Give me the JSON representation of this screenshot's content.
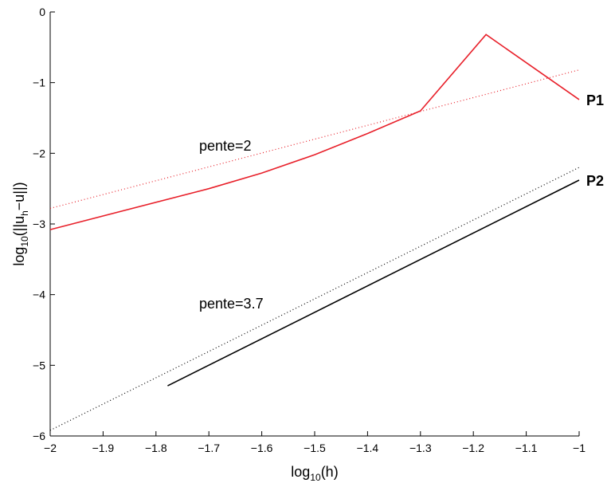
{
  "chart_data": {
    "type": "line",
    "xlabel": [
      "log",
      "10",
      "(h)"
    ],
    "ylabel": [
      "log",
      "10",
      "(||u",
      "h",
      "−u||)"
    ],
    "xlim": [
      -2,
      -1
    ],
    "ylim": [
      -6,
      0
    ],
    "xticks": [
      {
        "value": -2,
        "label": "−2"
      },
      {
        "value": -1.9,
        "label": "−1.9"
      },
      {
        "value": -1.8,
        "label": "−1.8"
      },
      {
        "value": -1.7,
        "label": "−1.7"
      },
      {
        "value": -1.6,
        "label": "−1.6"
      },
      {
        "value": -1.5,
        "label": "−1.5"
      },
      {
        "value": -1.4,
        "label": "−1.4"
      },
      {
        "value": -1.3,
        "label": "−1.3"
      },
      {
        "value": -1.2,
        "label": "−1.2"
      },
      {
        "value": -1.1,
        "label": "−1.1"
      },
      {
        "value": -1,
        "label": "−1"
      }
    ],
    "yticks": [
      {
        "value": -6,
        "label": "−6"
      },
      {
        "value": -5,
        "label": "−5"
      },
      {
        "value": -4,
        "label": "−4"
      },
      {
        "value": -3,
        "label": "−3"
      },
      {
        "value": -2,
        "label": "−2"
      },
      {
        "value": -1,
        "label": "−1"
      },
      0
    ],
    "series": [
      {
        "name": "P1",
        "color": "#e8202a",
        "linestyle": "solid",
        "x": [
          -2,
          -1.7,
          -1.6,
          -1.5,
          -1.4,
          -1.3,
          -1.176,
          -1
        ],
        "values": [
          -3.08,
          -2.5,
          -2.28,
          -2.02,
          -1.72,
          -1.4,
          -0.32,
          -1.24
        ]
      },
      {
        "name": "P2",
        "color": "#000000",
        "linestyle": "solid",
        "x": [
          -1.778,
          -1
        ],
        "values": [
          -5.29,
          -2.38
        ]
      },
      {
        "name": "pente=2",
        "color": "#e8202a",
        "linestyle": "dotted",
        "x": [
          -2,
          -1
        ],
        "values": [
          -2.78,
          -0.82
        ]
      },
      {
        "name": "pente=3.7",
        "color": "#000000",
        "linestyle": "dotted",
        "x": [
          -2,
          -1
        ],
        "values": [
          -5.92,
          -2.2
        ]
      }
    ]
  }
}
